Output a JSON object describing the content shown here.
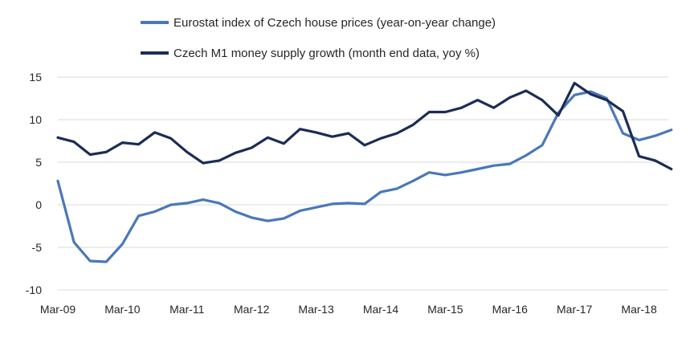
{
  "chart_data": {
    "type": "line",
    "title": "",
    "xlabel": "",
    "ylabel": "",
    "ylim": [
      -10,
      15
    ],
    "yticks": [
      -10,
      -5,
      0,
      5,
      10,
      15
    ],
    "xtick_labels": [
      "Mar-09",
      "Mar-10",
      "Mar-11",
      "Mar-12",
      "Mar-13",
      "Mar-14",
      "Mar-15",
      "Mar-16",
      "Mar-17",
      "Mar-18"
    ],
    "grid": "horizontal",
    "legend_position": "top",
    "series": [
      {
        "name": "Eurostat index of Czech house prices (year-on-year change)",
        "color": "#4a78b8",
        "values": [
          2.8,
          -4.4,
          -6.6,
          -6.7,
          -4.6,
          -1.3,
          -0.8,
          0.0,
          0.2,
          0.6,
          0.2,
          -0.8,
          -1.5,
          -1.9,
          -1.6,
          -0.7,
          -0.3,
          0.1,
          0.2,
          0.1,
          1.5,
          1.9,
          2.8,
          3.8,
          3.5,
          3.8,
          4.2,
          4.6,
          4.8,
          5.8,
          7.0,
          10.8,
          12.9,
          13.3,
          12.5,
          8.4,
          7.6,
          8.1,
          8.8
        ]
      },
      {
        "name": "Czech M1 money supply growth (month end data, yoy %)",
        "color": "#1b2d55",
        "values": [
          7.9,
          7.4,
          5.9,
          6.2,
          7.3,
          7.1,
          8.5,
          7.8,
          6.2,
          4.9,
          5.2,
          6.1,
          6.7,
          7.9,
          7.2,
          8.9,
          8.5,
          8.0,
          8.4,
          7.0,
          7.8,
          8.4,
          9.4,
          10.9,
          10.9,
          11.4,
          12.3,
          11.4,
          12.6,
          13.4,
          12.3,
          10.5,
          14.3,
          13.0,
          12.3,
          11.0,
          5.7,
          5.2,
          4.2
        ]
      }
    ]
  }
}
